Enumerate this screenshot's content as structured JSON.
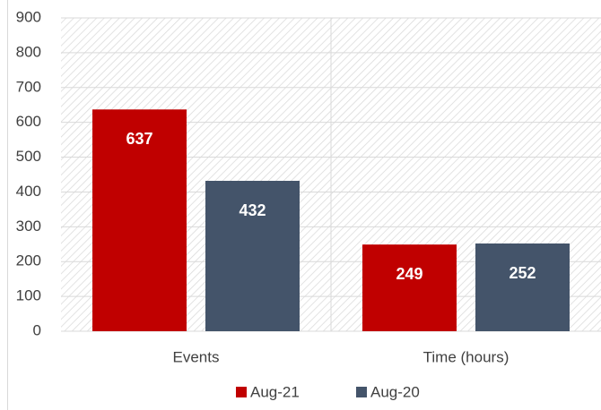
{
  "chart_data": {
    "type": "bar",
    "categories": [
      "Events",
      "Time (hours)"
    ],
    "series": [
      {
        "name": "Aug-21",
        "color": "#c00000",
        "values": [
          637,
          249
        ]
      },
      {
        "name": "Aug-20",
        "color": "#44546a",
        "values": [
          432,
          252
        ]
      }
    ],
    "ylim": [
      0,
      900
    ],
    "yticks": [
      0,
      100,
      200,
      300,
      400,
      500,
      600,
      700,
      800,
      900
    ],
    "grid": true,
    "legend": "bottom"
  }
}
